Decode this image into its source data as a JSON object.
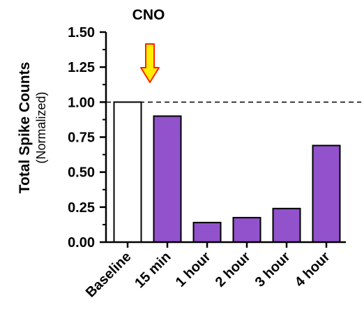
{
  "chart_data": {
    "type": "bar",
    "categories": [
      "Baseline",
      "15 min",
      "1 hour",
      "2 hour",
      "3 hour",
      "4 hour"
    ],
    "values": [
      1.0,
      0.9,
      0.14,
      0.175,
      0.24,
      0.69
    ],
    "ylabel": "Total Spike Counts",
    "ylabel_sub": "(Normalized)",
    "xlabel": "",
    "ylim": [
      0,
      1.5
    ],
    "yticks": [
      "0.00",
      "0.25",
      "0.50",
      "0.75",
      "1.00",
      "1.25",
      "1.50"
    ],
    "reference_line": {
      "y": 1.0,
      "style": "dashed"
    },
    "annotation": {
      "text": "CNO",
      "arrow": "down",
      "position": "between Baseline and 15 min"
    },
    "colors": {
      "baseline_fill": "#ffffff",
      "treatment_fill": "#9152cc",
      "edge": "#000000",
      "arrow_fill": "#ffee00",
      "arrow_edge": "#ff2200"
    },
    "grid": false,
    "legend": "none"
  }
}
